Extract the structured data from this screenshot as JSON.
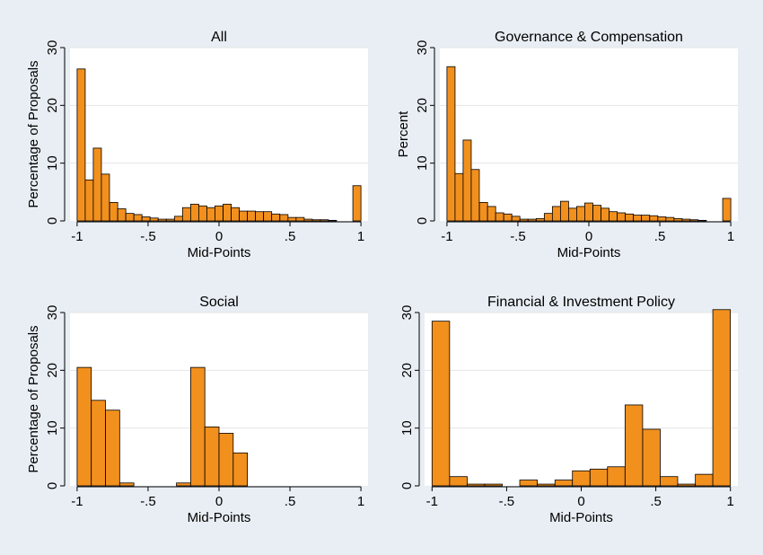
{
  "colors": {
    "bar_fill": "#f2901e",
    "bar_stroke": "#000000",
    "plot_bg": "#ffffff",
    "figure_bg": "#e8eef4",
    "grid": "#e4e4e4"
  },
  "chart_data": [
    {
      "type": "bar",
      "title": "All",
      "xlabel": "Mid-Points",
      "ylabel": "Percentage of Proposals",
      "xlim": [
        -1.05,
        1.05
      ],
      "ylim": [
        0,
        30
      ],
      "xticks": [
        -1,
        -0.5,
        0,
        0.5,
        1
      ],
      "xtick_labels": [
        "-1",
        "-.5",
        "0",
        ".5",
        "1"
      ],
      "yticks": [
        0,
        10,
        20,
        30
      ],
      "ytick_labels": [
        "0",
        "10",
        "20",
        "30"
      ],
      "grid": true,
      "bin_width": 0.0571,
      "bin_starts": [
        -1.0,
        -0.943,
        -0.886,
        -0.829,
        -0.771,
        -0.714,
        -0.657,
        -0.6,
        -0.543,
        -0.486,
        -0.429,
        -0.371,
        -0.314,
        -0.257,
        -0.2,
        -0.143,
        -0.086,
        -0.029,
        0.029,
        0.086,
        0.143,
        0.2,
        0.257,
        0.314,
        0.371,
        0.429,
        0.486,
        0.543,
        0.6,
        0.657,
        0.714,
        0.771,
        0.829,
        0.886,
        0.943
      ],
      "values": [
        26.3,
        7.1,
        12.6,
        8.1,
        3.2,
        2.1,
        1.3,
        1.1,
        0.7,
        0.5,
        0.3,
        0.3,
        0.8,
        2.3,
        2.9,
        2.6,
        2.3,
        2.6,
        2.9,
        2.3,
        1.7,
        1.7,
        1.6,
        1.6,
        1.2,
        1.1,
        0.6,
        0.6,
        0.3,
        0.2,
        0.2,
        0.1,
        0.0,
        0.0,
        6.1
      ]
    },
    {
      "type": "bar",
      "title": "Governance & Compensation",
      "xlabel": "Mid-Points",
      "ylabel": "Percent",
      "xlim": [
        -1.05,
        1.05
      ],
      "ylim": [
        0,
        30
      ],
      "xticks": [
        -1,
        -0.5,
        0,
        0.5,
        1
      ],
      "xtick_labels": [
        "-1",
        "-.5",
        "0",
        ".5",
        "1"
      ],
      "yticks": [
        0,
        10,
        20,
        30
      ],
      "ytick_labels": [
        "0",
        "10",
        "20",
        "30"
      ],
      "grid": true,
      "bin_width": 0.0571,
      "bin_starts": [
        -1.0,
        -0.943,
        -0.886,
        -0.829,
        -0.771,
        -0.714,
        -0.657,
        -0.6,
        -0.543,
        -0.486,
        -0.429,
        -0.371,
        -0.314,
        -0.257,
        -0.2,
        -0.143,
        -0.086,
        -0.029,
        0.029,
        0.086,
        0.143,
        0.2,
        0.257,
        0.314,
        0.371,
        0.429,
        0.486,
        0.543,
        0.6,
        0.657,
        0.714,
        0.771,
        0.829,
        0.886,
        0.943
      ],
      "values": [
        26.7,
        8.2,
        14.0,
        8.9,
        3.2,
        2.5,
        1.4,
        1.2,
        0.8,
        0.3,
        0.3,
        0.4,
        1.3,
        2.5,
        3.4,
        2.2,
        2.5,
        3.1,
        2.7,
        2.2,
        1.6,
        1.4,
        1.2,
        1.0,
        1.0,
        0.9,
        0.7,
        0.6,
        0.4,
        0.3,
        0.2,
        0.1,
        0.0,
        0.0,
        3.9
      ]
    },
    {
      "type": "bar",
      "title": "Social",
      "xlabel": "Mid-Points",
      "ylabel": "Percentage of Proposals",
      "xlim": [
        -1.05,
        1.05
      ],
      "ylim": [
        0,
        30
      ],
      "xticks": [
        -1,
        -0.5,
        0,
        0.5,
        1
      ],
      "xtick_labels": [
        "-1",
        "-.5",
        "0",
        ".5",
        "1"
      ],
      "yticks": [
        0,
        10,
        20,
        30
      ],
      "ytick_labels": [
        "0",
        "10",
        "20",
        "30"
      ],
      "grid": true,
      "bin_width": 0.1,
      "bin_starts": [
        -1.0,
        -0.9,
        -0.8,
        -0.7,
        -0.3,
        -0.2,
        -0.1,
        0.0,
        0.1
      ],
      "values": [
        20.5,
        14.8,
        13.1,
        0.5,
        0.5,
        20.5,
        10.2,
        9.1,
        5.7
      ]
    },
    {
      "type": "bar",
      "title": "Financial & Investment Policy",
      "xlabel": "Mid-Points",
      "ylabel": "",
      "xlim": [
        -1.05,
        1.05
      ],
      "ylim": [
        0,
        30
      ],
      "xticks": [
        -1,
        -0.5,
        0,
        0.5,
        1
      ],
      "xtick_labels": [
        "-1",
        "-.5",
        "0",
        ".5",
        "1"
      ],
      "yticks": [
        0,
        10,
        20,
        30
      ],
      "ytick_labels": [
        "0",
        "10",
        "20",
        "30"
      ],
      "grid": true,
      "bin_width": 0.1176,
      "bin_starts": [
        -1.0,
        -0.882,
        -0.765,
        -0.647,
        -0.529,
        -0.412,
        -0.294,
        -0.176,
        -0.059,
        0.059,
        0.176,
        0.294,
        0.412,
        0.529,
        0.647,
        0.765,
        0.882
      ],
      "values": [
        28.5,
        1.6,
        0.3,
        0.3,
        0.0,
        1.0,
        0.3,
        1.0,
        2.6,
        2.9,
        3.3,
        14.0,
        9.8,
        1.6,
        0.3,
        2.0,
        30.5
      ]
    }
  ]
}
